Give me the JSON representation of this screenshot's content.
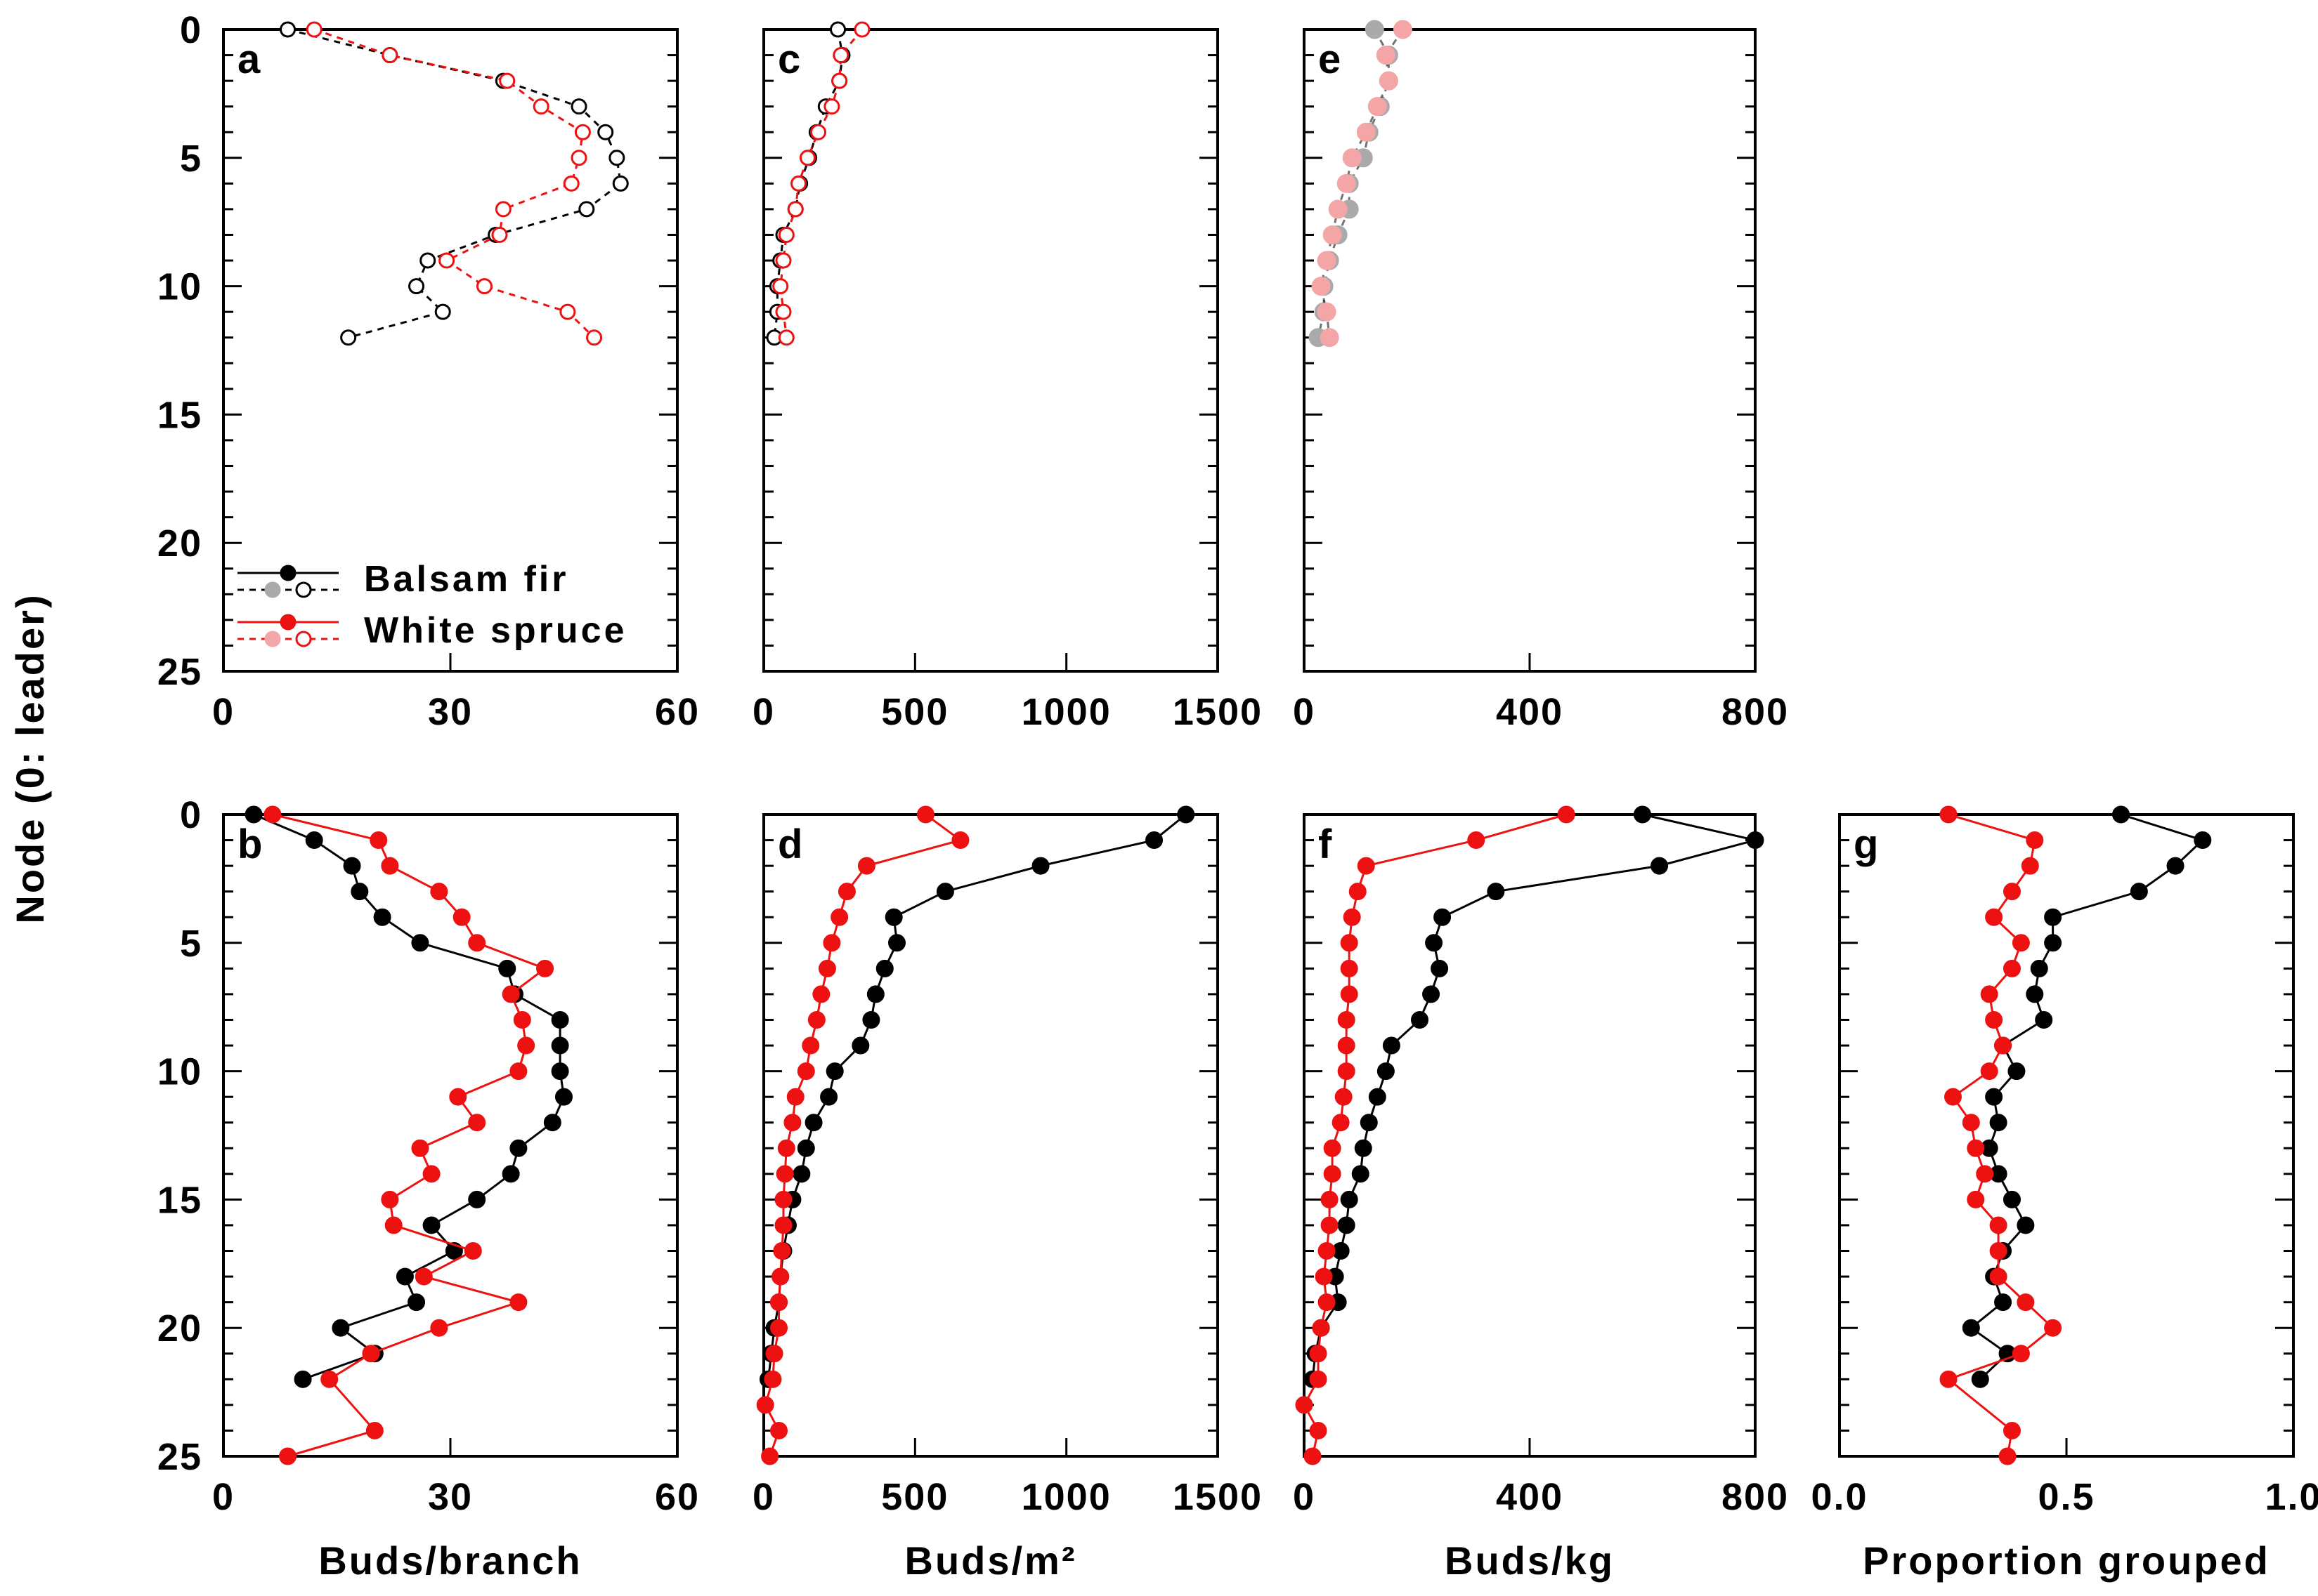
{
  "colors": {
    "balsam_fir": "#000000",
    "white_spruce": "#ee1111",
    "balsam_fir_light": "#aaaaaa",
    "white_spruce_light": "#f4a6a6"
  },
  "shared_ylabel": "Node (0: leader)",
  "legend": {
    "entries": [
      {
        "name": "Balsam fir"
      },
      {
        "name": "White spruce"
      }
    ]
  },
  "chart_data": [
    {
      "panel": "a",
      "type": "line",
      "xlim": [
        0,
        60
      ],
      "xticks": [
        "0",
        "30",
        "60"
      ],
      "ylim": [
        0,
        25
      ],
      "yticks": [
        "0",
        "5",
        "10",
        "15",
        "20",
        "25"
      ],
      "xlabel": "",
      "ylabel": "Node (0: leader)",
      "series": [
        {
          "name": "Balsam fir",
          "style": "dashed-open",
          "color_key": "balsam_fir",
          "x": [
            8.5,
            22,
            37,
            47,
            50.5,
            52,
            52.5,
            48,
            36,
            27,
            25.5,
            29,
            16.5
          ],
          "y": [
            0,
            1,
            2,
            3,
            4,
            5,
            6,
            7,
            8,
            9,
            10,
            11,
            12
          ]
        },
        {
          "name": "White spruce",
          "style": "dashed-open",
          "color_key": "white_spruce",
          "x": [
            12,
            22,
            37.5,
            42,
            47.5,
            47,
            46,
            37,
            36.5,
            29.5,
            34.5,
            45.5,
            49
          ],
          "y": [
            0,
            1,
            2,
            3,
            4,
            5,
            6,
            7,
            8,
            9,
            10,
            11,
            12
          ]
        }
      ]
    },
    {
      "panel": "b",
      "type": "line",
      "xlim": [
        0,
        60
      ],
      "xticks": [
        "0",
        "30",
        "60"
      ],
      "ylim": [
        0,
        25
      ],
      "yticks": [
        "0",
        "5",
        "10",
        "15",
        "20",
        "25"
      ],
      "xlabel": "Buds/branch",
      "ylabel": "Node (0: leader)",
      "series": [
        {
          "name": "Balsam fir",
          "style": "solid-filled",
          "color_key": "balsam_fir",
          "x": [
            4,
            12,
            17,
            18,
            21,
            26,
            37.5,
            38.5,
            44.5,
            44.5,
            44.5,
            45,
            43.5,
            39,
            38,
            33.5,
            27.5,
            30.5,
            24,
            25.5,
            15.5,
            20,
            10.5
          ],
          "y": [
            0,
            1,
            2,
            3,
            4,
            5,
            6,
            7,
            8,
            9,
            10,
            11,
            12,
            13,
            14,
            15,
            16,
            17,
            18,
            19,
            20,
            21,
            22
          ]
        },
        {
          "name": "White spruce",
          "style": "solid-filled",
          "color_key": "white_spruce",
          "x": [
            6.5,
            20.5,
            22,
            28.5,
            31.5,
            33.5,
            42.5,
            38,
            39.5,
            40,
            39,
            31,
            33.5,
            26,
            27.5,
            22,
            22.5,
            33,
            26.5,
            39,
            28.5,
            19.5,
            14,
            20,
            8.5
          ],
          "y": [
            0,
            1,
            2,
            3,
            4,
            5,
            6,
            7,
            8,
            9,
            10,
            11,
            12,
            13,
            14,
            15,
            16,
            17,
            18,
            19,
            20,
            21,
            22,
            24,
            25
          ]
        }
      ]
    },
    {
      "panel": "c",
      "type": "line",
      "xlim": [
        0,
        1500
      ],
      "xticks": [
        "0",
        "500",
        "1000",
        "1500"
      ],
      "ylim": [
        0,
        25
      ],
      "yticks": [
        "0",
        "5",
        "10",
        "15",
        "20",
        "25"
      ],
      "xlabel": "",
      "ylabel": "",
      "series": [
        {
          "name": "Balsam fir",
          "style": "dashed-open",
          "color_key": "balsam_fir",
          "x": [
            245,
            260,
            250,
            205,
            175,
            150,
            120,
            105,
            65,
            55,
            45,
            45,
            35
          ],
          "y": [
            0,
            1,
            2,
            3,
            4,
            5,
            6,
            7,
            8,
            9,
            10,
            11,
            12
          ]
        },
        {
          "name": "White spruce",
          "style": "dashed-open",
          "color_key": "white_spruce",
          "x": [
            325,
            255,
            250,
            225,
            180,
            145,
            115,
            105,
            75,
            65,
            55,
            65,
            75
          ],
          "y": [
            0,
            1,
            2,
            3,
            4,
            5,
            6,
            7,
            8,
            9,
            10,
            11,
            12
          ]
        }
      ]
    },
    {
      "panel": "d",
      "type": "line",
      "xlim": [
        0,
        1500
      ],
      "xticks": [
        "0",
        "500",
        "1000",
        "1500"
      ],
      "ylim": [
        0,
        25
      ],
      "yticks": [
        "0",
        "5",
        "10",
        "15",
        "20",
        "25"
      ],
      "xlabel": "Buds/m²",
      "ylabel": "",
      "series": [
        {
          "name": "Balsam fir",
          "style": "solid-filled",
          "color_key": "balsam_fir",
          "x": [
            1395,
            1290,
            915,
            600,
            430,
            440,
            400,
            370,
            355,
            320,
            235,
            215,
            165,
            140,
            125,
            95,
            80,
            65,
            55,
            50,
            35,
            25,
            15
          ],
          "y": [
            0,
            1,
            2,
            3,
            4,
            5,
            6,
            7,
            8,
            9,
            10,
            11,
            12,
            13,
            14,
            15,
            16,
            17,
            18,
            19,
            20,
            21,
            22
          ]
        },
        {
          "name": "White spruce",
          "style": "solid-filled",
          "color_key": "white_spruce",
          "x": [
            535,
            650,
            340,
            275,
            250,
            225,
            210,
            190,
            175,
            155,
            140,
            105,
            95,
            75,
            70,
            65,
            65,
            60,
            55,
            50,
            50,
            35,
            30,
            5,
            50,
            20
          ],
          "y": [
            0,
            1,
            2,
            3,
            4,
            5,
            6,
            7,
            8,
            9,
            10,
            11,
            12,
            13,
            14,
            15,
            16,
            17,
            18,
            19,
            20,
            21,
            22,
            23,
            24,
            25
          ]
        }
      ]
    },
    {
      "panel": "e",
      "type": "line",
      "xlim": [
        0,
        800
      ],
      "xticks": [
        "0",
        "400",
        "800"
      ],
      "ylim": [
        0,
        25
      ],
      "yticks": [
        "0",
        "5",
        "10",
        "15",
        "20",
        "25"
      ],
      "xlabel": "",
      "ylabel": "",
      "series": [
        {
          "name": "Balsam fir",
          "style": "dashed-light",
          "color_key": "balsam_fir_light",
          "x": [
            125,
            150,
            150,
            135,
            115,
            105,
            80,
            80,
            60,
            45,
            35,
            35,
            25
          ],
          "y": [
            0,
            1,
            2,
            3,
            4,
            5,
            6,
            7,
            8,
            9,
            10,
            11,
            12
          ]
        },
        {
          "name": "White spruce",
          "style": "dashed-light",
          "color_key": "white_spruce_light",
          "x": [
            175,
            145,
            150,
            130,
            110,
            85,
            75,
            60,
            50,
            40,
            30,
            40,
            45
          ],
          "y": [
            0,
            1,
            2,
            3,
            4,
            5,
            6,
            7,
            8,
            9,
            10,
            11,
            12
          ]
        }
      ]
    },
    {
      "panel": "f",
      "type": "line",
      "xlim": [
        0,
        800
      ],
      "xticks": [
        "0",
        "400",
        "800"
      ],
      "ylim": [
        0,
        25
      ],
      "yticks": [
        "0",
        "5",
        "10",
        "15",
        "20",
        "25"
      ],
      "xlabel": "Buds/kg",
      "ylabel": "",
      "series": [
        {
          "name": "Balsam fir",
          "style": "solid-filled",
          "color_key": "balsam_fir",
          "x": [
            600,
            800,
            630,
            340,
            245,
            230,
            240,
            225,
            205,
            155,
            145,
            130,
            115,
            105,
            100,
            80,
            75,
            65,
            55,
            60,
            30,
            20,
            15
          ],
          "y": [
            0,
            1,
            2,
            3,
            4,
            5,
            6,
            7,
            8,
            9,
            10,
            11,
            12,
            13,
            14,
            15,
            16,
            17,
            18,
            19,
            20,
            21,
            22
          ]
        },
        {
          "name": "White spruce",
          "style": "solid-filled",
          "color_key": "white_spruce",
          "x": [
            465,
            305,
            110,
            95,
            85,
            80,
            80,
            80,
            75,
            75,
            75,
            70,
            65,
            50,
            50,
            45,
            45,
            40,
            35,
            40,
            30,
            25,
            25,
            0,
            25,
            15
          ],
          "y": [
            0,
            1,
            2,
            3,
            4,
            5,
            6,
            7,
            8,
            9,
            10,
            11,
            12,
            13,
            14,
            15,
            16,
            17,
            18,
            19,
            20,
            21,
            22,
            23,
            24,
            25
          ]
        }
      ]
    },
    {
      "panel": "g",
      "type": "line",
      "xlim": [
        0,
        1
      ],
      "xticks": [
        "0.0",
        "0.5",
        "1.0"
      ],
      "ylim": [
        0,
        25
      ],
      "yticks": [
        "0",
        "5",
        "10",
        "15",
        "20",
        "25"
      ],
      "xlabel": "Proportion grouped",
      "ylabel": "",
      "series": [
        {
          "name": "Balsam fir",
          "style": "solid-filled",
          "color_key": "balsam_fir",
          "x": [
            0.62,
            0.8,
            0.74,
            0.66,
            0.47,
            0.47,
            0.44,
            0.43,
            0.45,
            0.36,
            0.39,
            0.34,
            0.35,
            0.33,
            0.35,
            0.38,
            0.41,
            0.36,
            0.34,
            0.36,
            0.29,
            0.37,
            0.31
          ],
          "y": [
            0,
            1,
            2,
            3,
            4,
            5,
            6,
            7,
            8,
            9,
            10,
            11,
            12,
            13,
            14,
            15,
            16,
            17,
            18,
            19,
            20,
            21,
            22
          ]
        },
        {
          "name": "White spruce",
          "style": "solid-filled",
          "color_key": "white_spruce",
          "x": [
            0.24,
            0.43,
            0.42,
            0.38,
            0.34,
            0.4,
            0.38,
            0.33,
            0.34,
            0.36,
            0.33,
            0.25,
            0.29,
            0.3,
            0.32,
            0.3,
            0.35,
            0.35,
            0.35,
            0.41,
            0.47,
            0.4,
            0.24,
            0.38,
            0.37
          ],
          "y": [
            0,
            1,
            2,
            3,
            4,
            5,
            6,
            7,
            8,
            9,
            10,
            11,
            12,
            13,
            14,
            15,
            16,
            17,
            18,
            19,
            20,
            21,
            22,
            24,
            25
          ]
        }
      ]
    }
  ]
}
